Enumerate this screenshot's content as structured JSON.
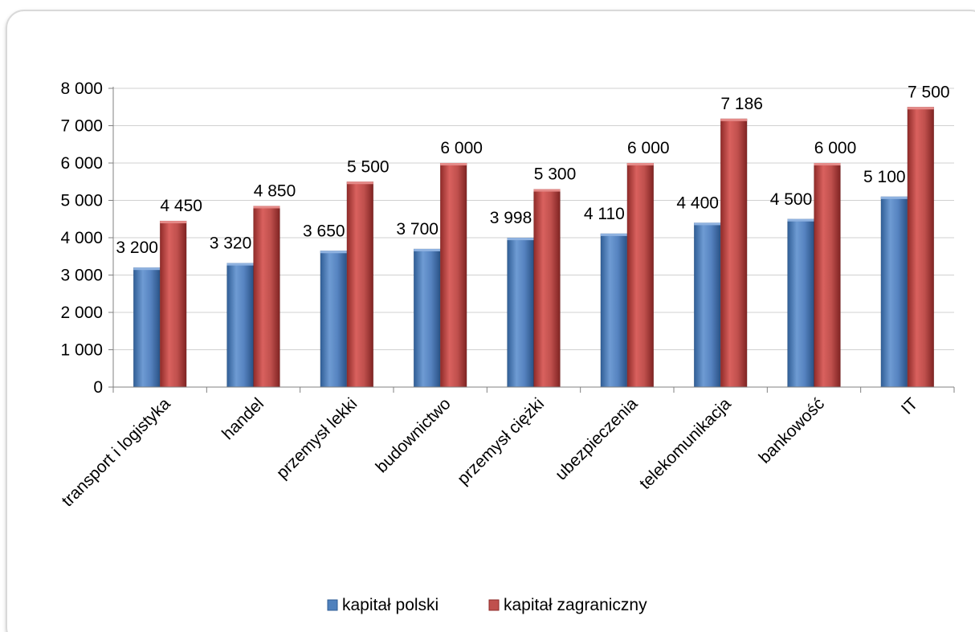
{
  "chart_data": {
    "type": "bar",
    "categories": [
      "transport i logistyka",
      "handel",
      "przemysł lekki",
      "budownictwo",
      "przemysł ciężki",
      "ubezpieczenia",
      "telekomunikacja",
      "bankowość",
      "IT"
    ],
    "series": [
      {
        "name": "kapitał polski",
        "values": [
          3200,
          3320,
          3650,
          3700,
          3998,
          4110,
          4400,
          4500,
          5100
        ],
        "color": "#4f81bd"
      },
      {
        "name": "kapitał zagraniczny",
        "values": [
          4450,
          4850,
          5500,
          6000,
          5300,
          6000,
          7186,
          6000,
          7500
        ],
        "color": "#c0504d"
      }
    ],
    "data_labels": [
      [
        "3 200",
        "3 320",
        "3 650",
        "3 700",
        "3 998",
        "4 110",
        "4 400",
        "4 500",
        "5 100"
      ],
      [
        "4 450",
        "4 850",
        "5 500",
        "6 000",
        "5 300",
        "6 000",
        "7 186",
        "6 000",
        "7 500"
      ]
    ],
    "y_ticks": [
      0,
      1000,
      2000,
      3000,
      4000,
      5000,
      6000,
      7000,
      8000
    ],
    "y_tick_labels": [
      "0",
      "1 000",
      "2 000",
      "3 000",
      "4 000",
      "5 000",
      "6 000",
      "7 000",
      "8 000"
    ],
    "ylim": [
      0,
      8000
    ],
    "grid": true,
    "legend_position": "bottom"
  }
}
